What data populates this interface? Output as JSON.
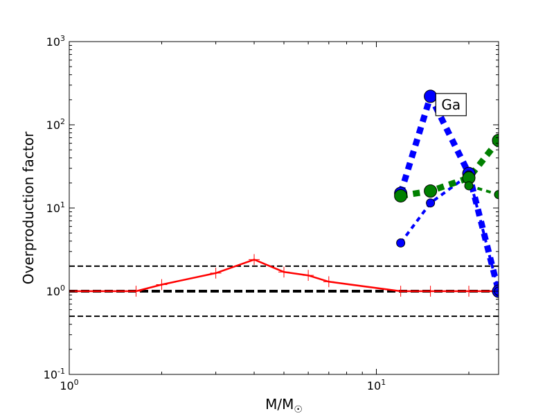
{
  "chart_data": {
    "type": "line",
    "xscale": "log",
    "yscale": "log",
    "xlim": [
      1,
      25
    ],
    "ylim": [
      0.1,
      1000
    ],
    "xlabel": "M/M",
    "xlabel_subscript_symbol": "☉",
    "ylabel": "Overproduction factor",
    "x_ticks": [
      {
        "value": 1,
        "base": "10",
        "exp": "0"
      },
      {
        "value": 10,
        "base": "10",
        "exp": "1"
      }
    ],
    "y_ticks": [
      {
        "value": 0.1,
        "base": "10",
        "exp": "-1"
      },
      {
        "value": 1,
        "base": "10",
        "exp": "0"
      },
      {
        "value": 10,
        "base": "10",
        "exp": "1"
      },
      {
        "value": 100,
        "base": "10",
        "exp": "2"
      },
      {
        "value": 1000,
        "base": "10",
        "exp": "3"
      }
    ],
    "reference_lines": [
      {
        "y": 2,
        "style": "dashed",
        "width": 2,
        "color": "#000000"
      },
      {
        "y": 1,
        "style": "dashed",
        "width": 4,
        "color": "#000000"
      },
      {
        "y": 0.5,
        "style": "dashed",
        "width": 2,
        "color": "#000000"
      }
    ],
    "series": [
      {
        "color": "#ff0000",
        "style": "solid",
        "width": 2.5,
        "marker": "errorbar",
        "x": [
          1.0,
          1.65,
          2.0,
          3.0,
          4.0,
          5.0,
          6.0,
          7.0,
          12.0,
          15.0,
          20.0,
          25.0
        ],
        "y": [
          1.0,
          1.0,
          1.2,
          1.65,
          2.4,
          1.7,
          1.55,
          1.3,
          1.0,
          1.0,
          1.0,
          1.0
        ]
      },
      {
        "color": "#0000ff",
        "style": "dotted",
        "width": 9,
        "marker": "circle",
        "marker_size": 9,
        "x": [
          12,
          15,
          20,
          25
        ],
        "y": [
          15,
          220,
          26,
          1.0
        ]
      },
      {
        "color": "#0000ff",
        "style": "dotted",
        "width": 4,
        "marker": "circle",
        "marker_size": 6,
        "x": [
          12,
          15,
          20,
          25
        ],
        "y": [
          3.8,
          11.5,
          25,
          1.0
        ]
      },
      {
        "color": "#008000",
        "style": "dotted",
        "width": 9,
        "marker": "circle",
        "marker_size": 9,
        "x": [
          12,
          15,
          20,
          25
        ],
        "y": [
          14,
          16,
          23,
          65
        ]
      },
      {
        "color": "#008000",
        "style": "dotted",
        "width": 4,
        "marker": "circle",
        "marker_size": 6,
        "x": [
          20,
          25
        ],
        "y": [
          18.5,
          14.5
        ]
      }
    ],
    "annotations": [
      {
        "text": "Ga",
        "x": 17.5,
        "y": 175
      }
    ],
    "grid": false,
    "legend": "none"
  }
}
